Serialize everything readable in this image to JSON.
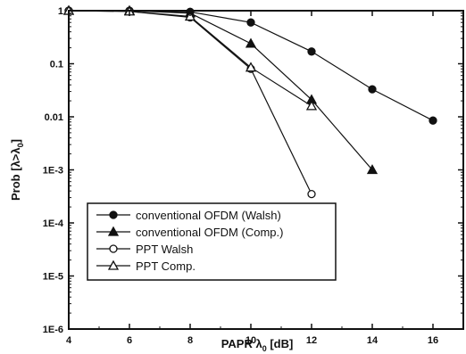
{
  "chart_data": {
    "type": "line",
    "xlabel": "PAPR λ",
    "xlabel_sub": "0",
    "xlabel_unit": " [dB]",
    "ylabel": "Prob [λ>λ",
    "ylabel_sub": "0",
    "ylabel_end": "]",
    "xlim": [
      4,
      17
    ],
    "ylim": [
      1e-06,
      1
    ],
    "yscale": "log",
    "grid": false,
    "legend_position": "lower-left",
    "x_ticks": [
      4,
      6,
      8,
      10,
      12,
      14,
      16
    ],
    "x_tick_labels": [
      "4",
      "6",
      "8",
      "10",
      "12",
      "14",
      "16"
    ],
    "y_ticks": [
      1,
      0.1,
      0.01,
      0.001,
      0.0001,
      1e-05,
      1e-06
    ],
    "y_tick_labels": [
      "1",
      "0.1",
      "0.01",
      "1E-3",
      "1E-4",
      "1E-5",
      "1E-6"
    ],
    "series": [
      {
        "name": "conventional OFDM (Walsh)",
        "marker": "circle-filled",
        "x": [
          4,
          6,
          8,
          10,
          12,
          14,
          16
        ],
        "y": [
          1,
          1,
          0.95,
          0.6,
          0.17,
          0.033,
          0.0085
        ]
      },
      {
        "name": "conventional OFDM (Comp.)",
        "marker": "triangle-filled",
        "x": [
          4,
          6,
          8,
          10,
          12,
          14
        ],
        "y": [
          1,
          1,
          0.9,
          0.24,
          0.021,
          0.001
        ]
      },
      {
        "name": "PPT Walsh",
        "marker": "circle-open",
        "x": [
          4,
          6,
          8,
          10,
          12
        ],
        "y": [
          1,
          0.97,
          0.75,
          0.08,
          0.00035
        ]
      },
      {
        "name": "PPT Comp.",
        "marker": "triangle-open",
        "x": [
          4,
          6,
          8,
          10,
          12
        ],
        "y": [
          1,
          0.97,
          0.78,
          0.085,
          0.016
        ]
      }
    ]
  }
}
